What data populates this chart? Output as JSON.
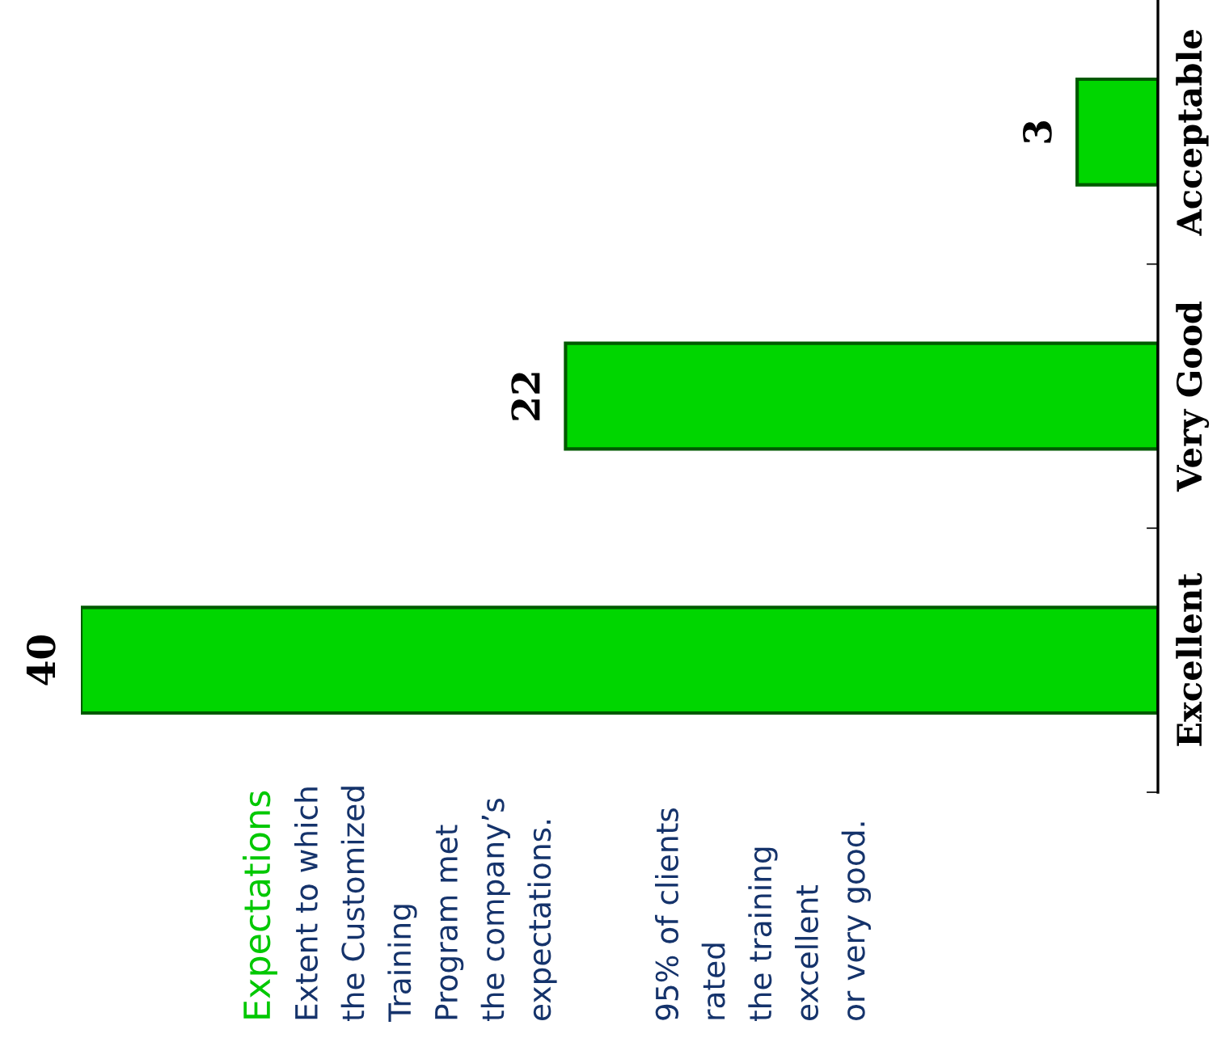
{
  "chart_data": {
    "type": "bar",
    "orientation": "horizontal",
    "title": "Expectations",
    "categories": [
      "Acceptable",
      "Very Good",
      "Excellent"
    ],
    "values": [
      3,
      22,
      40
    ],
    "color": "#00d600",
    "data_labels": true,
    "annotations": [
      "Extent to which\nthe Customized\nTraining\nProgram met\nthe company’s\nexpectations.",
      "95% of clients\nrated\nthe training\nexcellent\nor very good."
    ],
    "grid": false,
    "legend": false
  }
}
